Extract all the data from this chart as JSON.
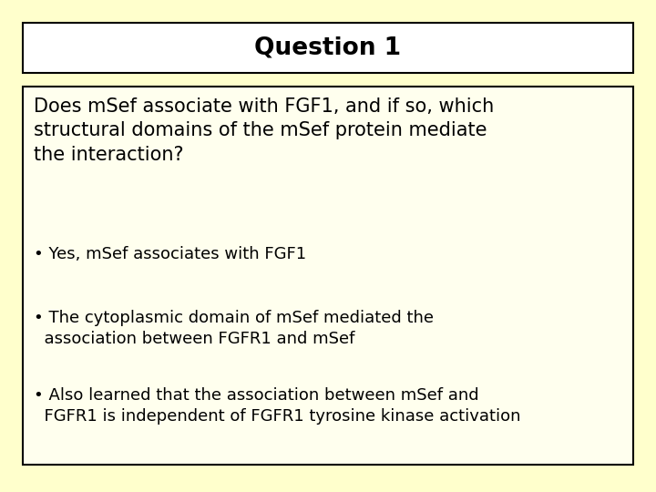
{
  "background_color": "#ffffcc",
  "title": "Question 1",
  "title_box_facecolor": "#ffffff",
  "title_box_edgecolor": "#000000",
  "title_fontsize": 19,
  "title_fontweight": "bold",
  "content_box_facecolor": "#ffffee",
  "content_box_edgecolor": "#000000",
  "question_text": "Does mSef associate with FGF1, and if so, which\nstructural domains of the mSef protein mediate\nthe interaction?",
  "question_fontsize": 15,
  "question_fontweight": "normal",
  "bullet1": "• Yes, mSef associates with FGF1",
  "bullet2": "• The cytoplasmic domain of mSef mediated the\n  association between FGFR1 and mSef",
  "bullet3": "• Also learned that the association between mSef and\n  FGFR1 is independent of FGFR1 tyrosine kinase activation",
  "bullet_fontsize": 13,
  "font_family": "DejaVu Sans",
  "text_color": "#000000",
  "fig_width": 7.2,
  "fig_height": 5.4,
  "dpi": 100
}
